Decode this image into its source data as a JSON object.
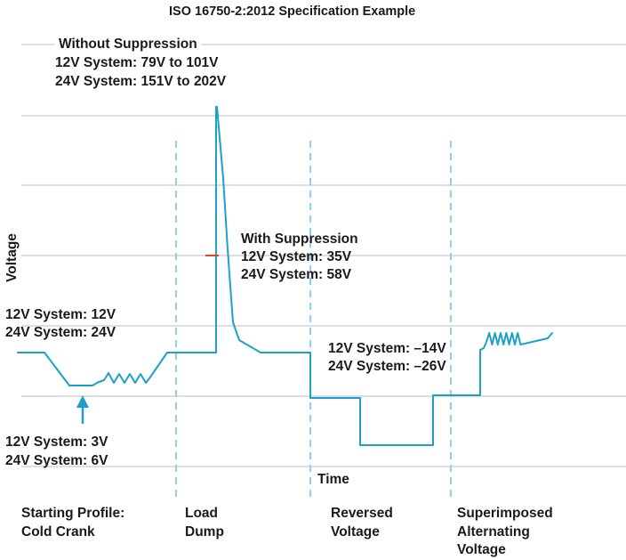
{
  "title": "ISO 16750-2:2012 Specification Example",
  "axis": {
    "x_label": "Time",
    "y_label": "Voltage"
  },
  "annotations": {
    "without_suppression": [
      "Without Suppression",
      "12V System: 79V to 101V",
      "24V System: 151V to 202V"
    ],
    "with_suppression": [
      "With Suppression",
      "12V System: 35V",
      "24V System: 58V"
    ],
    "nominal": [
      "12V System: 12V",
      "24V System: 24V"
    ],
    "cold_crank_min": [
      "12V System: 3V",
      "24V System: 6V"
    ],
    "reversed": [
      "12V System: –14V",
      "24V System: –26V"
    ]
  },
  "phases": [
    {
      "lines": [
        "Starting Profile:",
        "Cold Crank"
      ]
    },
    {
      "lines": [
        "Load",
        "Dump"
      ]
    },
    {
      "lines": [
        "Reversed",
        "Voltage"
      ]
    },
    {
      "lines": [
        "Superimposed",
        "Alternating",
        "Voltage"
      ]
    }
  ],
  "colors": {
    "signal": "#1da1c9",
    "divider": "#8fd0ec",
    "grid": "#d4d4d4",
    "marker": "#e0442f",
    "arrow": "#1da1c9"
  },
  "chart_data": {
    "type": "line",
    "note": "qualitative waveform, no numeric axis ticks",
    "series": [
      {
        "name": "",
        "shape": "voltage profile across four test phases"
      }
    ]
  }
}
